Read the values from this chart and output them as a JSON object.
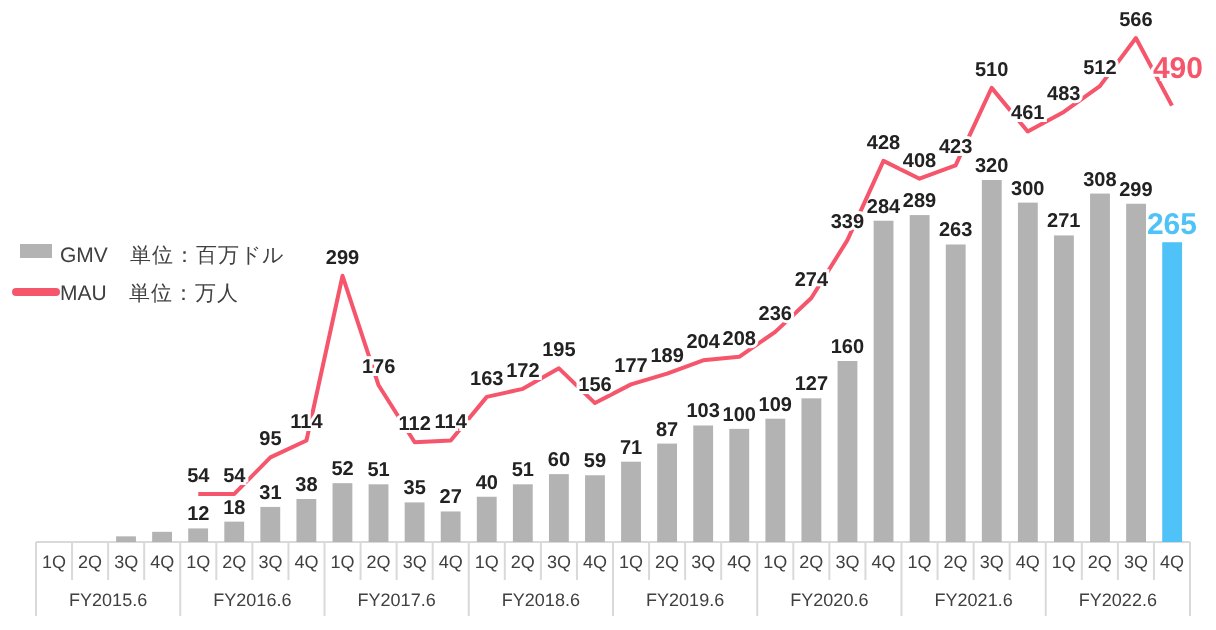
{
  "chart_data": {
    "type": "bar",
    "categories": [
      "1Q",
      "2Q",
      "3Q",
      "4Q",
      "1Q",
      "2Q",
      "3Q",
      "4Q",
      "1Q",
      "2Q",
      "3Q",
      "4Q",
      "1Q",
      "2Q",
      "3Q",
      "4Q",
      "1Q",
      "2Q",
      "3Q",
      "4Q",
      "1Q",
      "2Q",
      "3Q",
      "4Q",
      "1Q",
      "2Q",
      "3Q",
      "4Q",
      "1Q",
      "2Q",
      "3Q",
      "4Q"
    ],
    "annotations": [
      "FY2015.6",
      "FY2016.6",
      "FY2017.6",
      "FY2018.6",
      "FY2019.6",
      "FY2020.6",
      "FY2021.6",
      "FY2022.6"
    ],
    "tick_labels": "x",
    "legend": "left",
    "series": [
      {
        "name": "GMV　単位：百万ドル",
        "color": "#b3b3b3",
        "colors": [
          "#b3b3b3",
          "#b3b3b3",
          "#b3b3b3",
          "#b3b3b3",
          "#b3b3b3",
          "#b3b3b3",
          "#b3b3b3",
          "#b3b3b3",
          "#b3b3b3",
          "#b3b3b3",
          "#b3b3b3",
          "#b3b3b3",
          "#b3b3b3",
          "#b3b3b3",
          "#b3b3b3",
          "#b3b3b3",
          "#b3b3b3",
          "#b3b3b3",
          "#b3b3b3",
          "#b3b3b3",
          "#b3b3b3",
          "#b3b3b3",
          "#b3b3b3",
          "#b3b3b3",
          "#b3b3b3",
          "#b3b3b3",
          "#b3b3b3",
          "#b3b3b3",
          "#b3b3b3",
          "#b3b3b3",
          "#b3b3b3",
          "#4fc3f7"
        ],
        "values": [
          null,
          null,
          5,
          9,
          12,
          18,
          31,
          38,
          52,
          51,
          35,
          27,
          40,
          51,
          60,
          59,
          71,
          87,
          103,
          100,
          109,
          127,
          160,
          284,
          289,
          263,
          320,
          300,
          271,
          308,
          299,
          265
        ],
        "value_labels": [
          null,
          null,
          null,
          null,
          "12",
          "18",
          "31",
          "38",
          "52",
          "51",
          "35",
          "27",
          "40",
          "51",
          "60",
          "59",
          "71",
          "87",
          "103",
          "100",
          "109",
          "127",
          "160",
          "284",
          "289",
          "263",
          "320",
          "300",
          "271",
          "308",
          "299",
          "265"
        ]
      },
      {
        "name": "MAU　単位：万人",
        "type": "line",
        "axis": "y2",
        "color": "#f5566b",
        "marker": "none",
        "line_style": "solid",
        "values": [
          null,
          null,
          null,
          null,
          54,
          54,
          95,
          114,
          299,
          176,
          112,
          114,
          163,
          172,
          195,
          156,
          177,
          189,
          204,
          208,
          236,
          274,
          339,
          428,
          408,
          423,
          510,
          461,
          483,
          512,
          566,
          490
        ],
        "value_labels": [
          null,
          null,
          null,
          null,
          "54",
          "54",
          "95",
          "114",
          "299",
          "176",
          "112",
          "114",
          "163",
          "172",
          "195",
          "156",
          "177",
          "189",
          "204",
          "208",
          "236",
          "274",
          "339",
          "428",
          "408",
          "423",
          "510",
          "461",
          "483",
          "512",
          "566",
          "490"
        ]
      }
    ]
  }
}
